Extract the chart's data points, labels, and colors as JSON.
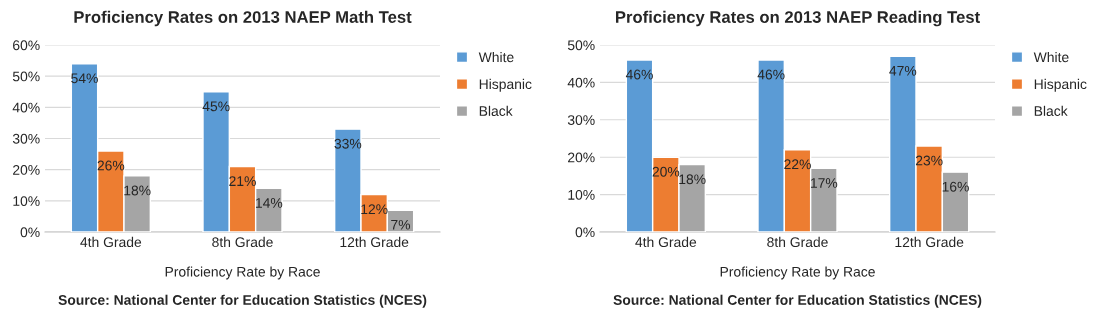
{
  "chart_data": [
    {
      "type": "bar",
      "title": "Proficiency Rates on 2013 NAEP Math Test",
      "xlabel": "Proficiency Rate by Race",
      "annotations": [
        "Source: National Center for Education Statistics (NCES)"
      ],
      "categories": [
        "4th Grade",
        "8th Grade",
        "12th Grade"
      ],
      "series": [
        {
          "name": "White",
          "color": "#5b9bd5",
          "values": [
            54,
            45,
            33
          ],
          "value_labels": [
            "54%",
            "45%",
            "33%"
          ]
        },
        {
          "name": "Hispanic",
          "color": "#ed7d31",
          "values": [
            26,
            21,
            12
          ],
          "value_labels": [
            "26%",
            "21%",
            "12%"
          ]
        },
        {
          "name": "Black",
          "color": "#a5a5a5",
          "values": [
            18,
            14,
            7
          ],
          "value_labels": [
            "18%",
            "14%",
            "7%"
          ]
        }
      ],
      "ylim": [
        0,
        60
      ],
      "yticks": [
        {
          "value": 0,
          "label": "0%"
        },
        {
          "value": 10,
          "label": "10%"
        },
        {
          "value": 20,
          "label": "20%"
        },
        {
          "value": 30,
          "label": "30%"
        },
        {
          "value": 40,
          "label": "40%"
        },
        {
          "value": 50,
          "label": "50%"
        },
        {
          "value": 60,
          "label": "60%"
        }
      ],
      "grid": "y",
      "legend": "top right"
    },
    {
      "type": "bar",
      "title": "Proficiency Rates on 2013 NAEP Reading Test",
      "xlabel": "Proficiency Rate by Race",
      "annotations": [
        "Source: National Center for Education Statistics (NCES)"
      ],
      "categories": [
        "4th Grade",
        "8th Grade",
        "12th Grade"
      ],
      "series": [
        {
          "name": "White",
          "color": "#5b9bd5",
          "values": [
            46,
            46,
            47
          ],
          "value_labels": [
            "46%",
            "46%",
            "47%"
          ]
        },
        {
          "name": "Hispanic",
          "color": "#ed7d31",
          "values": [
            20,
            22,
            23
          ],
          "value_labels": [
            "20%",
            "22%",
            "23%"
          ]
        },
        {
          "name": "Black",
          "color": "#a5a5a5",
          "values": [
            18,
            17,
            16
          ],
          "value_labels": [
            "18%",
            "17%",
            "16%"
          ]
        }
      ],
      "ylim": [
        0,
        50
      ],
      "yticks": [
        {
          "value": 0,
          "label": "0%"
        },
        {
          "value": 10,
          "label": "10%"
        },
        {
          "value": 20,
          "label": "20%"
        },
        {
          "value": 30,
          "label": "30%"
        },
        {
          "value": 40,
          "label": "40%"
        },
        {
          "value": 50,
          "label": "50%"
        }
      ],
      "grid": "y",
      "legend": "top right"
    }
  ]
}
